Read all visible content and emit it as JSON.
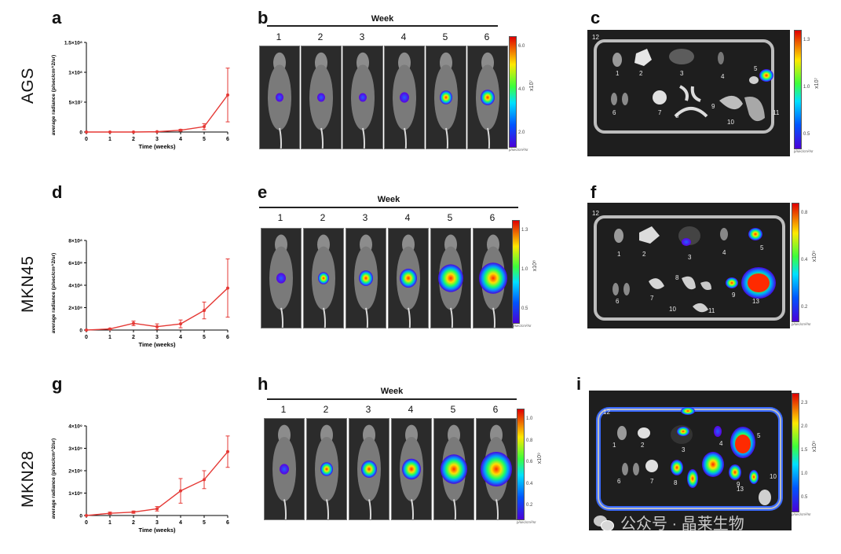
{
  "panel_letters": {
    "a": "a",
    "b": "b",
    "c": "c",
    "d": "d",
    "e": "e",
    "f": "f",
    "g": "g",
    "h": "h",
    "i": "i"
  },
  "row_labels": [
    "AGS",
    "MKN45",
    "MKN28"
  ],
  "week_header": "Week",
  "week_numbers": [
    "1",
    "2",
    "3",
    "4",
    "5",
    "6"
  ],
  "colorbars": [
    {
      "ticks": [
        "6.0",
        "4.0",
        "2.0"
      ],
      "exp": "x10⁷",
      "unit": "p/sec/cm²/sr"
    },
    {
      "ticks": [
        "1.3",
        "1.0",
        "0.5"
      ],
      "exp": "x10⁷",
      "unit": "p/sec/cm²/sr"
    },
    {
      "ticks": [
        "1.3",
        "1.0",
        "0.5"
      ],
      "exp": "x10⁸",
      "unit": "p/sec/cm²/sr"
    },
    {
      "ticks": [
        "0.8",
        "0.4",
        "0.2"
      ],
      "exp": "x10⁹",
      "unit": "p/sec/cm²/sr"
    },
    {
      "ticks": [
        "1.0",
        "0.8",
        "0.6",
        "0.4",
        "0.2"
      ],
      "exp": "x10⁹",
      "unit": "p/sec/cm²/sr"
    },
    {
      "ticks": [
        "2.3",
        "2.0",
        "1.5",
        "1.0",
        "0.5"
      ],
      "exp": "x10⁹",
      "unit": "p/sec/cm²/sr"
    }
  ],
  "organ_labels": {
    "c": [
      "12",
      "1",
      "2",
      "3",
      "4",
      "5",
      "6",
      "7",
      "8",
      "9",
      "10",
      "11"
    ],
    "f": [
      "12",
      "1",
      "2",
      "3",
      "4",
      "5",
      "6",
      "7",
      "8",
      "9",
      "10",
      "11",
      "13"
    ],
    "i": [
      "12",
      "1",
      "2",
      "3",
      "4",
      "5",
      "6",
      "7",
      "8",
      "9",
      "10",
      "13"
    ]
  },
  "watermark": "公众号 · 晶莱生物",
  "chart_data": [
    {
      "type": "line",
      "title": "",
      "series": [
        {
          "name": "AGS",
          "x": [
            0,
            1,
            2,
            3,
            4,
            5,
            6
          ],
          "values": [
            0,
            0,
            0,
            500000.0,
            3000000.0,
            9000000.0,
            62000000.0
          ],
          "errors": [
            0,
            0,
            0,
            0,
            1500000.0,
            5000000.0,
            45000000.0
          ]
        }
      ],
      "xlabel": "Time (weeks)",
      "ylabel": "average radiance (p/sec/cm^2/sr)",
      "ylim": [
        0,
        150000000.0
      ],
      "yticks": [
        {
          "v": 0,
          "label": "0"
        },
        {
          "v": 50000000.0,
          "label": "5×10⁷"
        },
        {
          "v": 100000000.0,
          "label": "1×10⁸"
        },
        {
          "v": 150000000.0,
          "label": "1.5×10⁸"
        }
      ],
      "xticks": [
        "0",
        "1",
        "2",
        "3",
        "4",
        "5",
        "6"
      ]
    },
    {
      "type": "line",
      "title": "",
      "series": [
        {
          "name": "MKN45",
          "x": [
            0,
            1,
            2,
            3,
            4,
            5,
            6
          ],
          "values": [
            0,
            10000000.0,
            60000000.0,
            30000000.0,
            55000000.0,
            175000000.0,
            375000000.0
          ],
          "errors": [
            0,
            5000000.0,
            20000000.0,
            25000000.0,
            35000000.0,
            75000000.0,
            260000000.0
          ]
        }
      ],
      "xlabel": "Time (weeks)",
      "ylabel": "average radiance (p/sec/cm^2/sr)",
      "ylim": [
        0,
        800000000.0
      ],
      "yticks": [
        {
          "v": 0,
          "label": "0"
        },
        {
          "v": 200000000.0,
          "label": "2×10⁸"
        },
        {
          "v": 400000000.0,
          "label": "4×10⁸"
        },
        {
          "v": 600000000.0,
          "label": "6×10⁸"
        },
        {
          "v": 800000000.0,
          "label": "8×10⁸"
        }
      ],
      "xticks": [
        "0",
        "1",
        "2",
        "3",
        "4",
        "5",
        "6"
      ]
    },
    {
      "type": "line",
      "title": "",
      "series": [
        {
          "name": "MKN28",
          "x": [
            0,
            1,
            2,
            3,
            4,
            5,
            6
          ],
          "values": [
            0,
            100000000.0,
            150000000.0,
            300000000.0,
            1100000000.0,
            1600000000.0,
            2850000000.0
          ],
          "errors": [
            0,
            50000000.0,
            50000000.0,
            100000000.0,
            550000000.0,
            400000000.0,
            700000000.0
          ]
        }
      ],
      "xlabel": "Time (weeks)",
      "ylabel": "average radiance (p/sec/cm^2/sr)",
      "ylim": [
        0,
        4000000000.0
      ],
      "yticks": [
        {
          "v": 0,
          "label": "0"
        },
        {
          "v": 1000000000.0,
          "label": "1×10⁹"
        },
        {
          "v": 2000000000.0,
          "label": "2×10⁹"
        },
        {
          "v": 3000000000.0,
          "label": "3×10⁹"
        },
        {
          "v": 4000000000.0,
          "label": "4×10⁹"
        }
      ],
      "xticks": [
        "0",
        "1",
        "2",
        "3",
        "4",
        "5",
        "6"
      ]
    }
  ]
}
